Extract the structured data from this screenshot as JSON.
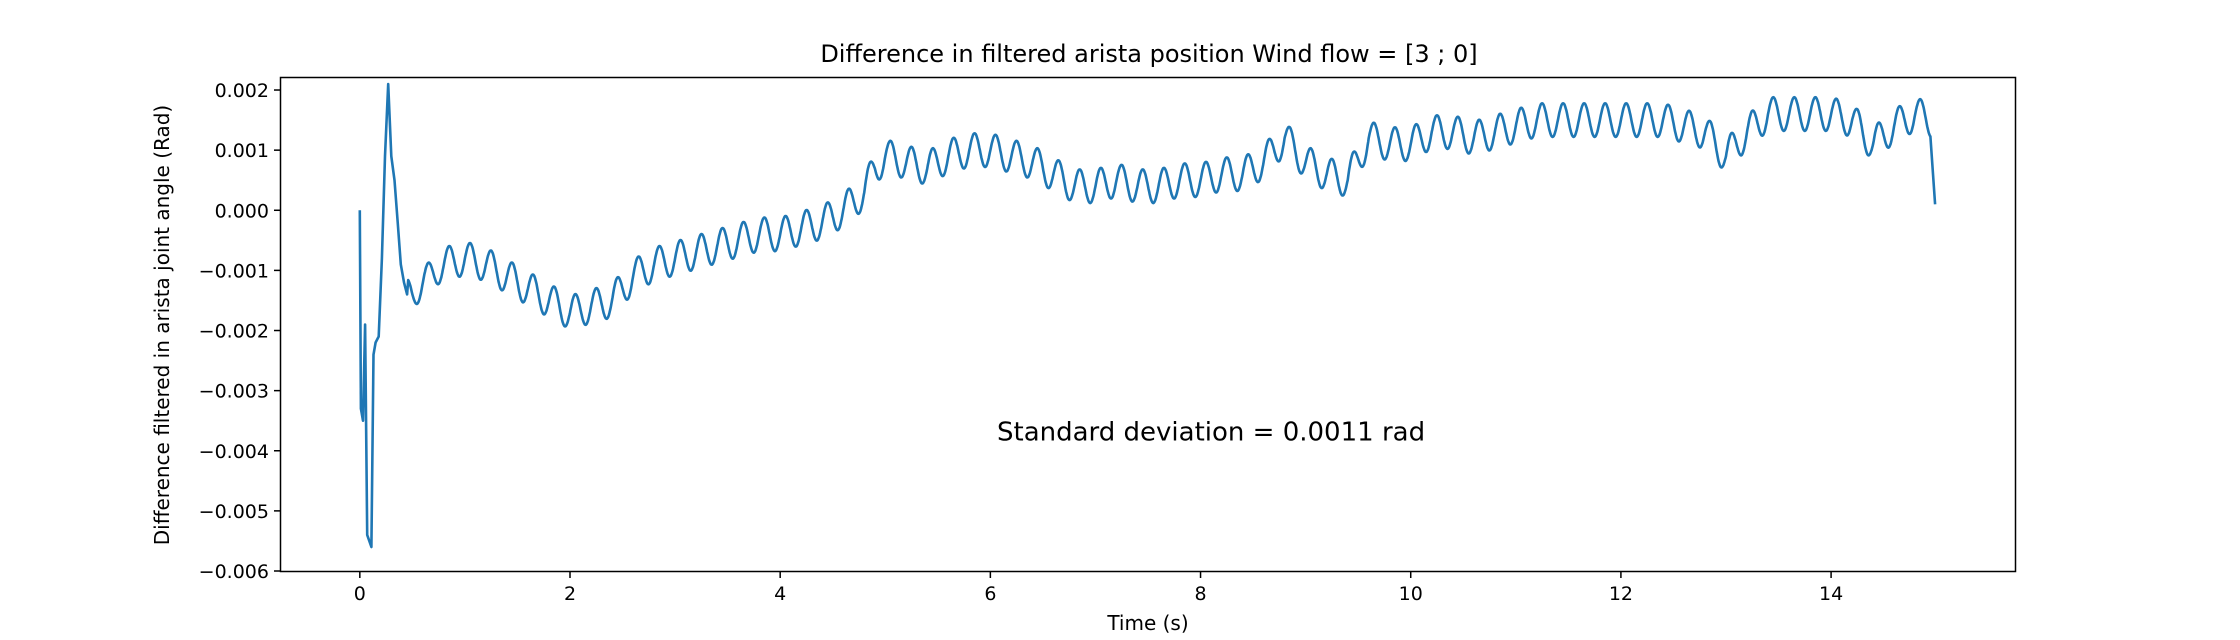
{
  "chart_data": {
    "type": "line",
    "title": "Difference in filtered arista position Wind flow = [3 ; 0]",
    "xlabel": "Time (s)",
    "ylabel": "Difference filtered in arista joint angle (Rad)",
    "xlim": [
      -0.75,
      15.75
    ],
    "ylim": [
      -0.006,
      0.0022
    ],
    "x_ticks": [
      0,
      2,
      4,
      6,
      8,
      10,
      12,
      14
    ],
    "x_tick_labels": [
      "0",
      "2",
      "4",
      "6",
      "8",
      "10",
      "12",
      "14"
    ],
    "y_ticks": [
      -0.006,
      -0.005,
      -0.004,
      -0.003,
      -0.002,
      -0.001,
      0.0,
      0.001,
      0.002
    ],
    "y_tick_labels": [
      "−0.006",
      "−0.005",
      "−0.004",
      "−0.003",
      "−0.002",
      "−0.001",
      "0.000",
      "0.001",
      "0.002"
    ],
    "grid": false,
    "legend": "none",
    "annotation": {
      "text": "Standard deviation = 0.0011 rad",
      "x": 8.1,
      "y": -0.00383
    },
    "series": [
      {
        "color": "#1f77b4",
        "oscillation_period": 0.2,
        "x": [
          0.0,
          0.01,
          0.03,
          0.05,
          0.07,
          0.09,
          0.11,
          0.13,
          0.15,
          0.18,
          0.21,
          0.24,
          0.27,
          0.3,
          0.33,
          0.36,
          0.39,
          0.42,
          0.45,
          0.5,
          0.6,
          0.8,
          1.0,
          1.2,
          1.4,
          1.6,
          1.8,
          2.0,
          2.2,
          2.4,
          2.6,
          2.8,
          3.0,
          3.2,
          3.4,
          3.6,
          3.8,
          4.0,
          4.2,
          4.4,
          4.6,
          4.8,
          4.9,
          5.0,
          5.2,
          5.4,
          5.6,
          5.8,
          6.0,
          6.2,
          6.4,
          6.6,
          6.8,
          7.0,
          7.2,
          7.4,
          7.6,
          7.8,
          8.0,
          8.2,
          8.4,
          8.6,
          8.8,
          9.0,
          9.2,
          9.4,
          9.6,
          9.8,
          10.0,
          10.2,
          10.4,
          10.6,
          10.8,
          11.0,
          11.2,
          11.4,
          11.6,
          11.8,
          12.0,
          12.2,
          12.4,
          12.6,
          12.8,
          13.0,
          13.2,
          13.4,
          13.6,
          13.8,
          14.0,
          14.2,
          14.4,
          14.6,
          14.8,
          14.95,
          14.99
        ],
        "y": [
          0.0,
          -0.0033,
          -0.0035,
          -0.0019,
          -0.0054,
          -0.0055,
          -0.0056,
          -0.0024,
          -0.0022,
          -0.0021,
          -0.0008,
          0.0009,
          0.0021,
          0.0009,
          0.0005,
          -0.0002,
          -0.0009,
          -0.0012,
          -0.0014,
          -0.0014,
          -0.0012,
          -0.0009,
          -0.0008,
          -0.0009,
          -0.0011,
          -0.0013,
          -0.0015,
          -0.0017,
          -0.0016,
          -0.0015,
          -0.0011,
          -0.0009,
          -0.0008,
          -0.0007,
          -0.0006,
          -0.0005,
          -0.0004,
          -0.0004,
          -0.0003,
          -0.0002,
          0.0,
          0.0003,
          0.0007,
          0.0009,
          0.0008,
          0.0007,
          0.0009,
          0.001,
          0.001,
          0.0009,
          0.0008,
          0.0006,
          0.0004,
          0.0004,
          0.0005,
          0.0004,
          0.0004,
          0.0005,
          0.0005,
          0.0006,
          0.0006,
          0.0008,
          0.0012,
          0.0008,
          0.0006,
          0.0005,
          0.0012,
          0.0011,
          0.0011,
          0.0013,
          0.0013,
          0.0012,
          0.0013,
          0.0014,
          0.0015,
          0.0015,
          0.0015,
          0.0015,
          0.0015,
          0.0015,
          0.0015,
          0.0014,
          0.0013,
          0.0009,
          0.0013,
          0.0016,
          0.0016,
          0.0016,
          0.0016,
          0.0015,
          0.0011,
          0.0014,
          0.0016,
          0.0015,
          0.0001
        ]
      }
    ]
  }
}
